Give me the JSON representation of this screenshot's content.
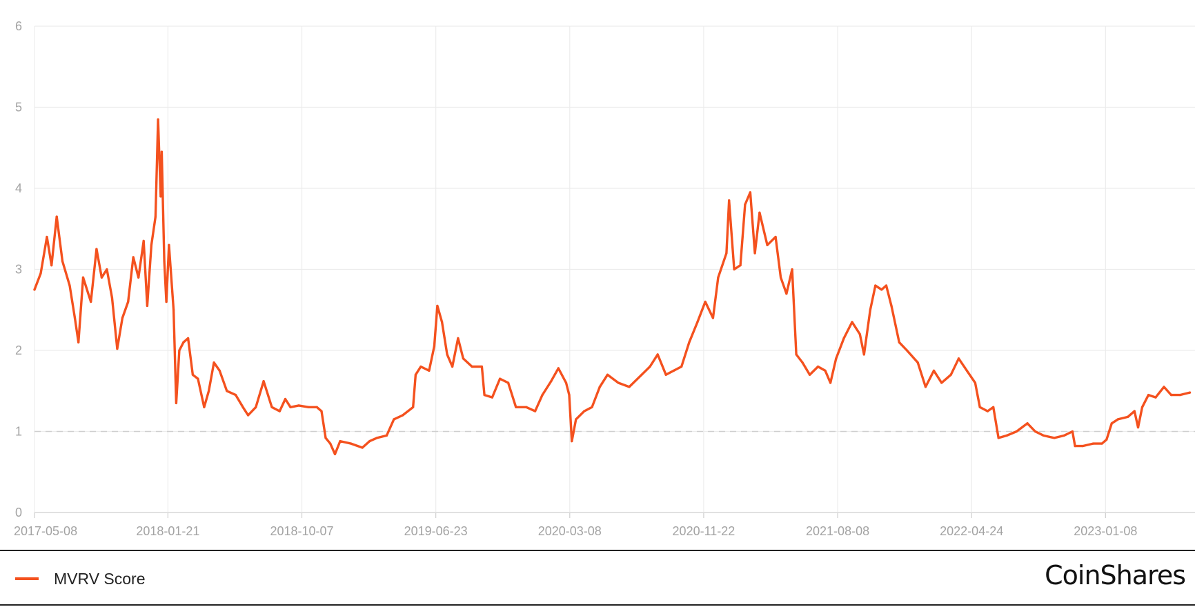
{
  "chart_data": {
    "type": "line",
    "x_type": "date",
    "x_ticks": [
      "2017-05-08",
      "2018-01-21",
      "2018-10-07",
      "2019-06-23",
      "2020-03-08",
      "2020-11-22",
      "2021-08-08",
      "2022-04-24",
      "2023-01-08"
    ],
    "xlim": [
      "2017-05-08",
      "2023-06-30"
    ],
    "ylim": [
      0,
      6
    ],
    "y_ticks": [
      0,
      1,
      2,
      3,
      4,
      5,
      6
    ],
    "grid": true,
    "reference_line": {
      "y": 1,
      "style": "dashed"
    },
    "legend": {
      "position": "bottom-left"
    },
    "series": [
      {
        "name": "MVRV Score",
        "color": "#f4511e",
        "points": [
          [
            "2017-05-08",
            2.75
          ],
          [
            "2017-05-20",
            2.95
          ],
          [
            "2017-06-01",
            3.4
          ],
          [
            "2017-06-10",
            3.05
          ],
          [
            "2017-06-20",
            3.65
          ],
          [
            "2017-07-01",
            3.1
          ],
          [
            "2017-07-15",
            2.8
          ],
          [
            "2017-07-25",
            2.4
          ],
          [
            "2017-08-01",
            2.1
          ],
          [
            "2017-08-10",
            2.9
          ],
          [
            "2017-08-25",
            2.6
          ],
          [
            "2017-09-05",
            3.25
          ],
          [
            "2017-09-15",
            2.9
          ],
          [
            "2017-09-25",
            3.0
          ],
          [
            "2017-10-05",
            2.65
          ],
          [
            "2017-10-15",
            2.02
          ],
          [
            "2017-10-25",
            2.4
          ],
          [
            "2017-11-05",
            2.6
          ],
          [
            "2017-11-15",
            3.15
          ],
          [
            "2017-11-25",
            2.9
          ],
          [
            "2017-12-05",
            3.35
          ],
          [
            "2017-12-12",
            2.55
          ],
          [
            "2017-12-20",
            3.3
          ],
          [
            "2017-12-28",
            3.65
          ],
          [
            "2018-01-02",
            4.85
          ],
          [
            "2018-01-07",
            3.9
          ],
          [
            "2018-01-09",
            4.45
          ],
          [
            "2018-01-14",
            3.1
          ],
          [
            "2018-01-18",
            2.6
          ],
          [
            "2018-01-23",
            3.3
          ],
          [
            "2018-02-01",
            2.5
          ],
          [
            "2018-02-06",
            1.35
          ],
          [
            "2018-02-12",
            2.0
          ],
          [
            "2018-02-20",
            2.1
          ],
          [
            "2018-03-01",
            2.15
          ],
          [
            "2018-03-10",
            1.7
          ],
          [
            "2018-03-20",
            1.65
          ],
          [
            "2018-04-01",
            1.3
          ],
          [
            "2018-04-10",
            1.5
          ],
          [
            "2018-04-20",
            1.85
          ],
          [
            "2018-05-01",
            1.75
          ],
          [
            "2018-05-15",
            1.5
          ],
          [
            "2018-06-01",
            1.45
          ],
          [
            "2018-06-15",
            1.3
          ],
          [
            "2018-06-25",
            1.2
          ],
          [
            "2018-07-10",
            1.3
          ],
          [
            "2018-07-25",
            1.62
          ],
          [
            "2018-08-10",
            1.3
          ],
          [
            "2018-08-25",
            1.25
          ],
          [
            "2018-09-05",
            1.4
          ],
          [
            "2018-09-15",
            1.3
          ],
          [
            "2018-10-01",
            1.32
          ],
          [
            "2018-10-20",
            1.3
          ],
          [
            "2018-11-05",
            1.3
          ],
          [
            "2018-11-14",
            1.25
          ],
          [
            "2018-11-22",
            0.92
          ],
          [
            "2018-12-01",
            0.85
          ],
          [
            "2018-12-10",
            0.72
          ],
          [
            "2018-12-20",
            0.88
          ],
          [
            "2019-01-10",
            0.85
          ],
          [
            "2019-02-01",
            0.8
          ],
          [
            "2019-02-15",
            0.88
          ],
          [
            "2019-03-01",
            0.92
          ],
          [
            "2019-03-20",
            0.95
          ],
          [
            "2019-04-03",
            1.15
          ],
          [
            "2019-04-20",
            1.2
          ],
          [
            "2019-05-10",
            1.3
          ],
          [
            "2019-05-15",
            1.7
          ],
          [
            "2019-05-25",
            1.8
          ],
          [
            "2019-06-10",
            1.75
          ],
          [
            "2019-06-20",
            2.05
          ],
          [
            "2019-06-26",
            2.55
          ],
          [
            "2019-07-05",
            2.35
          ],
          [
            "2019-07-15",
            1.95
          ],
          [
            "2019-07-25",
            1.8
          ],
          [
            "2019-08-05",
            2.15
          ],
          [
            "2019-08-15",
            1.9
          ],
          [
            "2019-09-01",
            1.8
          ],
          [
            "2019-09-20",
            1.8
          ],
          [
            "2019-09-25",
            1.45
          ],
          [
            "2019-10-10",
            1.42
          ],
          [
            "2019-10-25",
            1.65
          ],
          [
            "2019-11-10",
            1.6
          ],
          [
            "2019-11-25",
            1.3
          ],
          [
            "2019-12-15",
            1.3
          ],
          [
            "2020-01-01",
            1.25
          ],
          [
            "2020-01-15",
            1.45
          ],
          [
            "2020-02-01",
            1.62
          ],
          [
            "2020-02-15",
            1.78
          ],
          [
            "2020-03-01",
            1.6
          ],
          [
            "2020-03-07",
            1.45
          ],
          [
            "2020-03-12",
            0.88
          ],
          [
            "2020-03-20",
            1.15
          ],
          [
            "2020-04-05",
            1.25
          ],
          [
            "2020-04-20",
            1.3
          ],
          [
            "2020-05-05",
            1.55
          ],
          [
            "2020-05-20",
            1.7
          ],
          [
            "2020-06-10",
            1.6
          ],
          [
            "2020-07-01",
            1.55
          ],
          [
            "2020-07-25",
            1.7
          ],
          [
            "2020-08-10",
            1.8
          ],
          [
            "2020-08-25",
            1.95
          ],
          [
            "2020-09-10",
            1.7
          ],
          [
            "2020-09-25",
            1.75
          ],
          [
            "2020-10-10",
            1.8
          ],
          [
            "2020-10-25",
            2.1
          ],
          [
            "2020-11-10",
            2.35
          ],
          [
            "2020-11-25",
            2.6
          ],
          [
            "2020-12-10",
            2.4
          ],
          [
            "2020-12-20",
            2.9
          ],
          [
            "2021-01-05",
            3.2
          ],
          [
            "2021-01-10",
            3.85
          ],
          [
            "2021-01-20",
            3.0
          ],
          [
            "2021-02-01",
            3.05
          ],
          [
            "2021-02-10",
            3.8
          ],
          [
            "2021-02-20",
            3.95
          ],
          [
            "2021-03-01",
            3.2
          ],
          [
            "2021-03-10",
            3.7
          ],
          [
            "2021-03-25",
            3.3
          ],
          [
            "2021-04-10",
            3.4
          ],
          [
            "2021-04-20",
            2.9
          ],
          [
            "2021-05-01",
            2.7
          ],
          [
            "2021-05-12",
            3.0
          ],
          [
            "2021-05-20",
            1.95
          ],
          [
            "2021-06-01",
            1.85
          ],
          [
            "2021-06-15",
            1.7
          ],
          [
            "2021-07-01",
            1.8
          ],
          [
            "2021-07-15",
            1.75
          ],
          [
            "2021-07-25",
            1.6
          ],
          [
            "2021-08-05",
            1.9
          ],
          [
            "2021-08-20",
            2.15
          ],
          [
            "2021-09-05",
            2.35
          ],
          [
            "2021-09-20",
            2.2
          ],
          [
            "2021-09-28",
            1.95
          ],
          [
            "2021-10-10",
            2.5
          ],
          [
            "2021-10-20",
            2.8
          ],
          [
            "2021-11-01",
            2.75
          ],
          [
            "2021-11-10",
            2.8
          ],
          [
            "2021-11-20",
            2.55
          ],
          [
            "2021-12-05",
            2.1
          ],
          [
            "2021-12-20",
            2.0
          ],
          [
            "2022-01-10",
            1.85
          ],
          [
            "2022-01-25",
            1.55
          ],
          [
            "2022-02-10",
            1.75
          ],
          [
            "2022-02-25",
            1.6
          ],
          [
            "2022-03-15",
            1.7
          ],
          [
            "2022-03-30",
            1.9
          ],
          [
            "2022-04-15",
            1.75
          ],
          [
            "2022-05-01",
            1.6
          ],
          [
            "2022-05-10",
            1.3
          ],
          [
            "2022-05-25",
            1.25
          ],
          [
            "2022-06-05",
            1.3
          ],
          [
            "2022-06-15",
            0.92
          ],
          [
            "2022-07-01",
            0.95
          ],
          [
            "2022-07-20",
            1.0
          ],
          [
            "2022-08-10",
            1.1
          ],
          [
            "2022-08-25",
            1.0
          ],
          [
            "2022-09-10",
            0.95
          ],
          [
            "2022-10-01",
            0.92
          ],
          [
            "2022-10-20",
            0.95
          ],
          [
            "2022-11-05",
            1.0
          ],
          [
            "2022-11-10",
            0.82
          ],
          [
            "2022-11-25",
            0.82
          ],
          [
            "2022-12-15",
            0.85
          ],
          [
            "2023-01-01",
            0.85
          ],
          [
            "2023-01-10",
            0.9
          ],
          [
            "2023-01-20",
            1.1
          ],
          [
            "2023-02-01",
            1.15
          ],
          [
            "2023-02-20",
            1.18
          ],
          [
            "2023-03-05",
            1.25
          ],
          [
            "2023-03-12",
            1.05
          ],
          [
            "2023-03-20",
            1.3
          ],
          [
            "2023-04-01",
            1.45
          ],
          [
            "2023-04-15",
            1.42
          ],
          [
            "2023-05-01",
            1.55
          ],
          [
            "2023-05-15",
            1.45
          ],
          [
            "2023-06-01",
            1.45
          ],
          [
            "2023-06-20",
            1.48
          ]
        ]
      }
    ]
  },
  "footer": {
    "legend_label": "MVRV Score",
    "brand": "CoinShares"
  }
}
